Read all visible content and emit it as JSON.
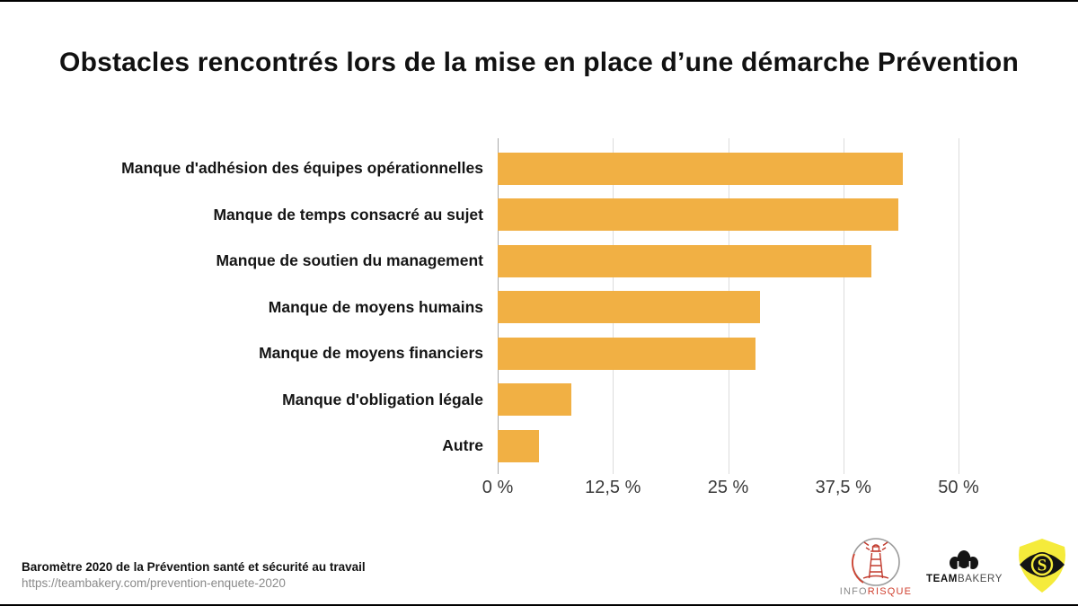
{
  "title": "Obstacles rencontrés lors de la mise en place d’une démarche Prévention",
  "chart_data": {
    "type": "bar",
    "orientation": "horizontal",
    "title": "Obstacles rencontrés lors de la mise en place d’une démarche Prévention",
    "categories": [
      "Manque d'adhésion des équipes opérationnelles",
      "Manque de temps consacré au sujet",
      "Manque de soutien du management",
      "Manque de moyens humains",
      "Manque de moyens financiers",
      "Manque d'obligation légale",
      "Autre"
    ],
    "values": [
      44,
      43.5,
      40.5,
      28.5,
      28,
      8,
      4.5
    ],
    "value_unit": "%",
    "xlim": [
      0,
      50
    ],
    "x_ticks": [
      {
        "value": 0,
        "label": "0 %"
      },
      {
        "value": 12.5,
        "label": "12,5 %"
      },
      {
        "value": 25,
        "label": "25 %"
      },
      {
        "value": 37.5,
        "label": "37,5 %"
      },
      {
        "value": 50,
        "label": "50 %"
      }
    ],
    "grid": true,
    "legend": "none",
    "bar_color": "#F1B044",
    "gridline_color": "#DCDCDC"
  },
  "footer": {
    "source_title": "Baromètre 2020 de la Prévention santé et sécurité au travail",
    "source_url": "https://teambakery.com/prevention-enquete-2020"
  },
  "logos": {
    "inforisque": {
      "text_gray": "INFO",
      "text_red": "RISQUE"
    },
    "teambakery": {
      "text_bold": "TEAM",
      "text_light": "BAKERY"
    },
    "eye_shield": {
      "letter": "S",
      "shield_color": "#F5EB3B"
    }
  }
}
